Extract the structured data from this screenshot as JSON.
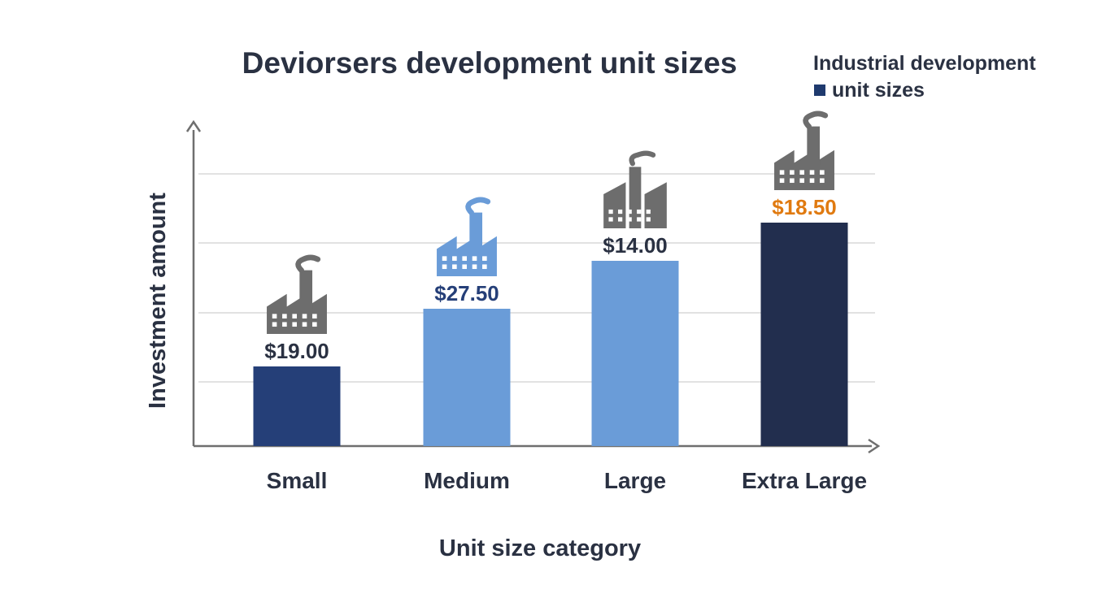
{
  "chart_data": {
    "type": "bar",
    "title": "Deviorsers development unit sizes",
    "legend": {
      "position": "top-right",
      "lines": [
        "Industrial development",
        "unit sizes"
      ],
      "swatch_color": "#1f3a6e"
    },
    "xlabel": "Unit size category",
    "ylabel": "Investment amount",
    "categories": [
      "Small",
      "Medium",
      "Large",
      "Extra Large"
    ],
    "values": [
      19.0,
      27.5,
      14.0,
      18.5
    ],
    "value_labels": [
      "$19.00",
      "$27.50",
      "$14.00",
      "$18.50"
    ],
    "colors": [
      "#253f78",
      "#6a9cd8",
      "#6a9cd8",
      "#222e4e"
    ],
    "label_colors": [
      "#2a3142",
      "#253f78",
      "#2a3142",
      "#e07a10"
    ],
    "icons": [
      "factory-icon",
      "factory-icon",
      "factory-icon",
      "factory-icon"
    ],
    "icon_colors": [
      "#6d6d6d",
      "#6a9cd8",
      "#6d6d6d",
      "#6d6d6d"
    ],
    "grid": true,
    "axis_color": "#6f6f6f",
    "grid_color": "#e2e2e2"
  }
}
